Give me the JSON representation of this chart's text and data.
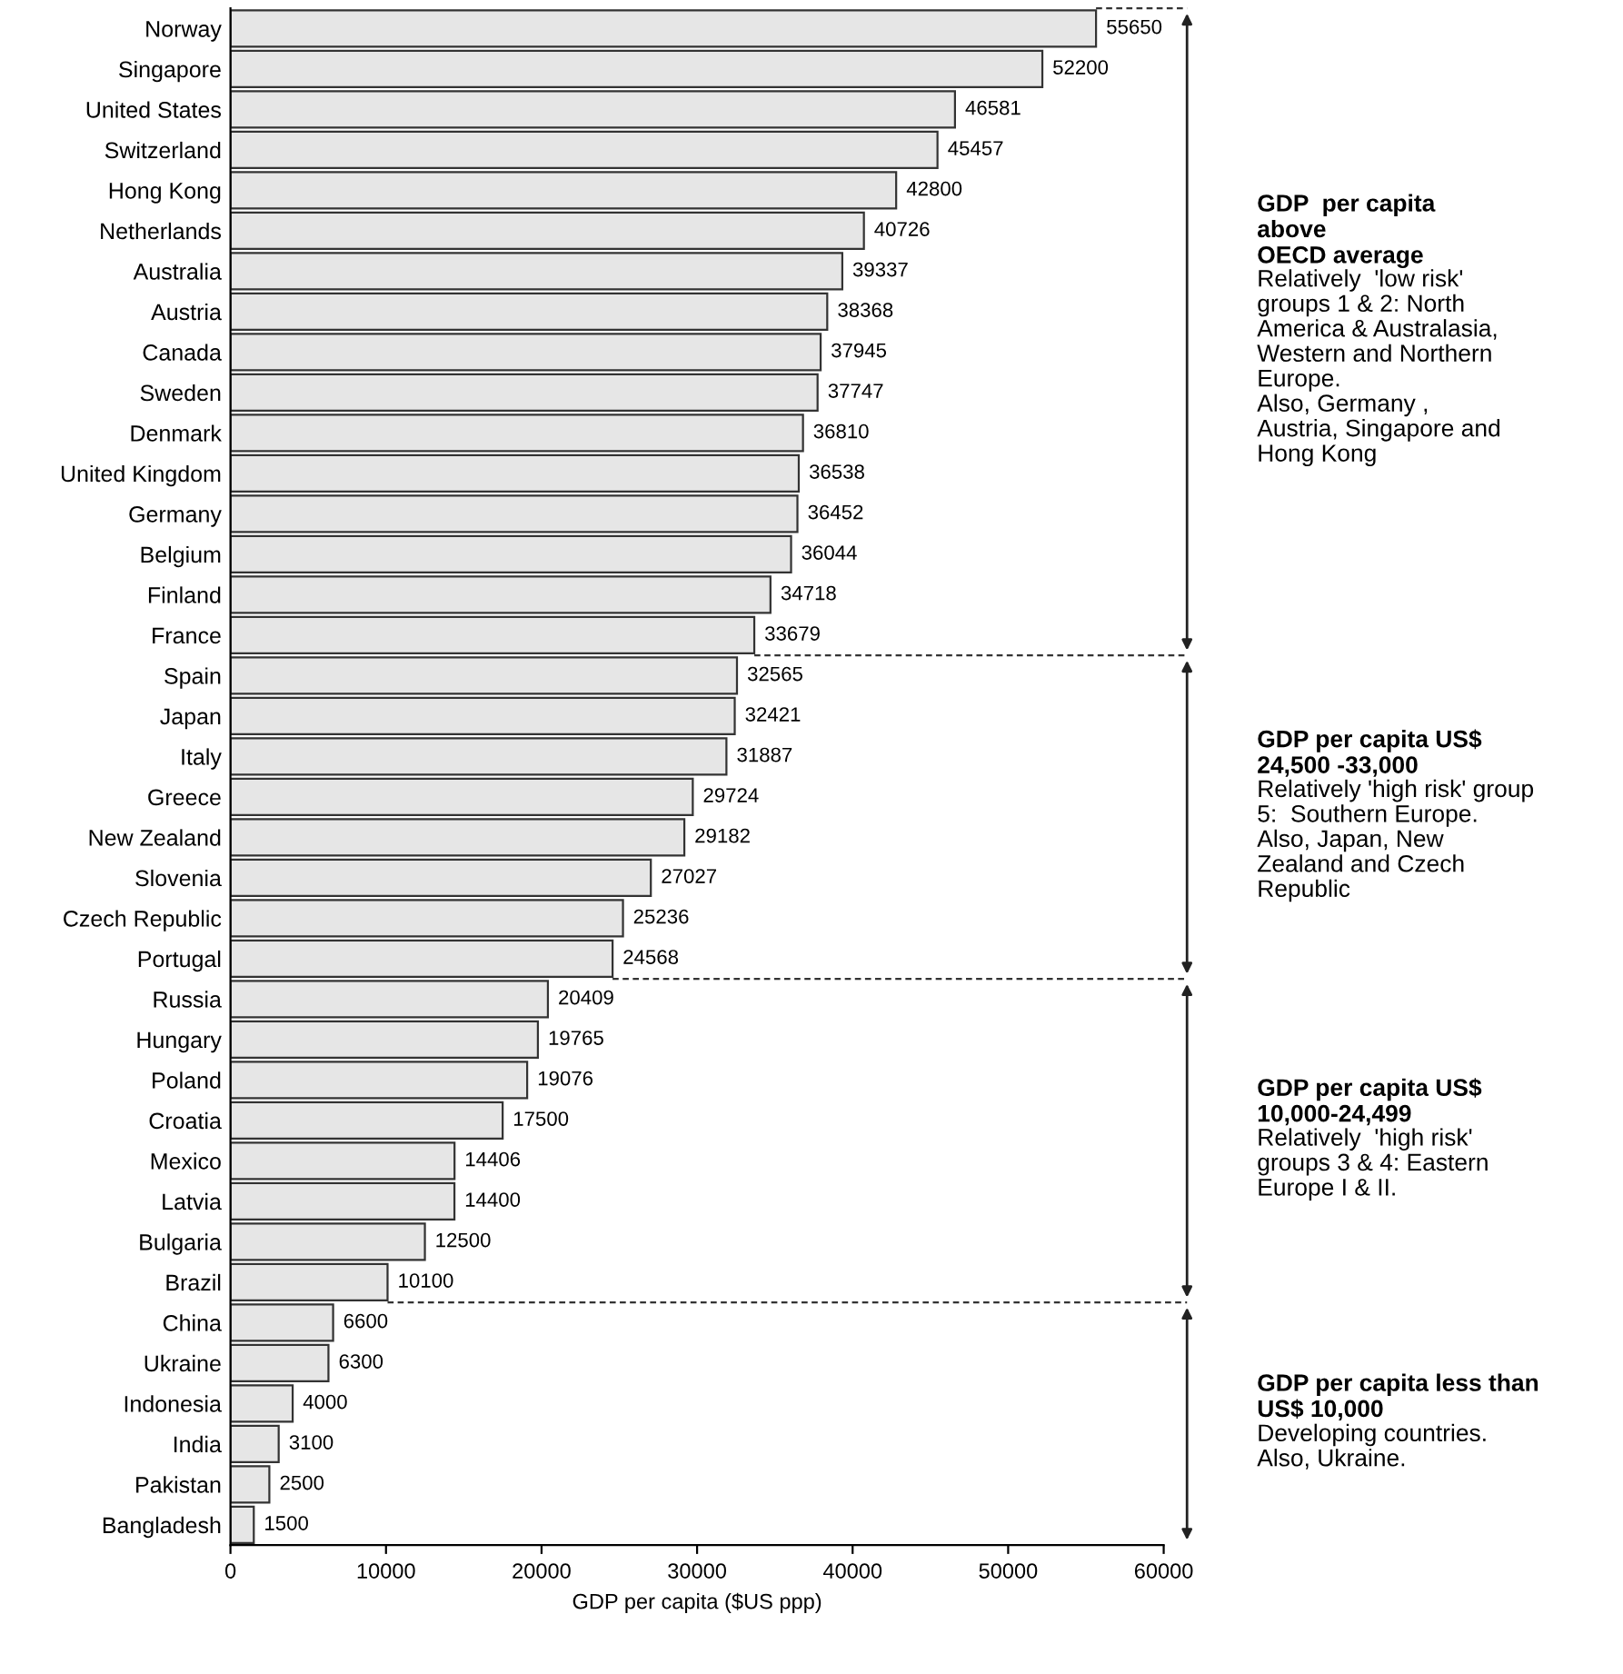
{
  "chart_data": {
    "type": "bar",
    "orientation": "horizontal",
    "xlabel": "GDP per capita ($US ppp)",
    "categories": [
      "Norway",
      "Singapore",
      "United States",
      "Switzerland",
      "Hong Kong",
      "Netherlands",
      "Australia",
      "Austria",
      "Canada",
      "Sweden",
      "Denmark",
      "United Kingdom",
      "Germany",
      "Belgium",
      "Finland",
      "France",
      "Spain",
      "Japan",
      "Italy",
      "Greece",
      "New Zealand",
      "Slovenia",
      "Czech Republic",
      "Portugal",
      "Russia",
      "Hungary",
      "Poland",
      "Croatia",
      "Mexico",
      "Latvia",
      "Bulgaria",
      "Brazil",
      "China",
      "Ukraine",
      "Indonesia",
      "India",
      "Pakistan",
      "Bangladesh"
    ],
    "values": [
      55650,
      52200,
      46581,
      45457,
      42800,
      40726,
      39337,
      38368,
      37945,
      37747,
      36810,
      36538,
      36452,
      36044,
      34718,
      33679,
      32565,
      32421,
      31887,
      29724,
      29182,
      27027,
      25236,
      24568,
      20409,
      19765,
      19076,
      17500,
      14406,
      14400,
      12500,
      10100,
      6600,
      6300,
      4000,
      3100,
      2500,
      1500
    ],
    "color": "#e6e6e6",
    "data_labels": true,
    "xlim": [
      0,
      60000
    ],
    "xticks": [
      0,
      10000,
      20000,
      30000,
      40000,
      50000,
      60000
    ],
    "grid": false,
    "legend": false,
    "annotations": [
      "GDP  per capita\nabove\nOECD average",
      "Relatively  'low risk'\ngroups 1 & 2: North\nAmerica & Australasia,\nWestern and Northern\nEurope.\nAlso, Germany ,\nAustria, Singapore and\nHong Kong",
      "GDP per capita US$\n24,500 -33,000",
      "Relatively 'high risk' group\n5:  Southern Europe.\nAlso, Japan, New\nZealand and Czech\nRepublic",
      "GDP per capita US$\n10,000-24,499",
      "Relatively  'high risk'\ngroups 3 & 4: Eastern\nEurope I & II.",
      "GDP per capita less than\nUS$ 10,000",
      "Developing countries.\nAlso, Ukraine."
    ]
  }
}
